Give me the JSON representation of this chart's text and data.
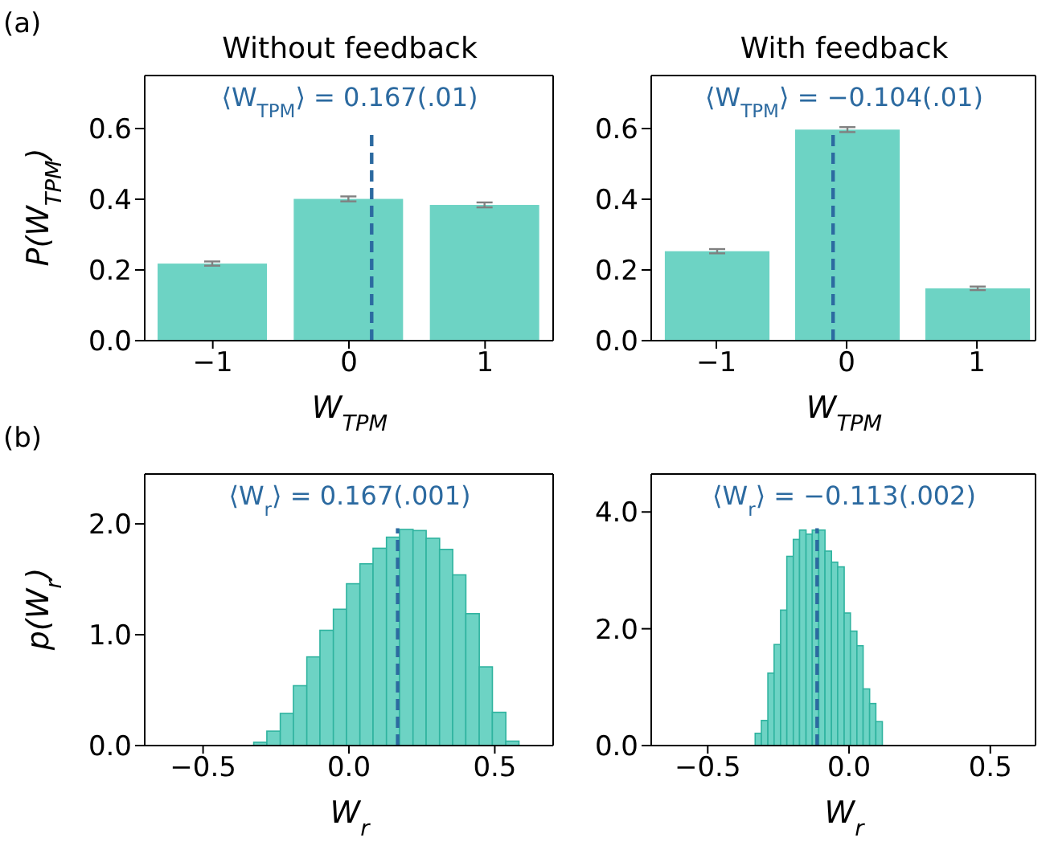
{
  "chart_data": [
    {
      "type": "bar",
      "title": "Without feedback",
      "xlabel": "W$_{TPM}$",
      "ylabel": "P(W$_{TPM}$)",
      "annotations": [
        "(a)"
      ],
      "x": [
        -1,
        0,
        1
      ],
      "values": [
        0.218,
        0.401,
        0.384
      ],
      "errors": [
        0.006,
        0.007,
        0.007
      ],
      "color": "#6dd3c4",
      "xlim": [
        -1.5,
        1.5
      ],
      "xticks": [
        {
          "value": -1,
          "label": "−1"
        },
        0,
        1
      ],
      "ylim": [
        0,
        0.75
      ],
      "yticks": [
        {
          "value": 0,
          "label": "0.0"
        },
        {
          "value": 0.2,
          "label": "0.2"
        },
        {
          "value": 0.4,
          "label": "0.4"
        },
        {
          "value": 0.6,
          "label": "0.6"
        }
      ],
      "ref_lines": [
        {
          "axis": "x",
          "value": 0.167,
          "label": "⟨W$_{TPM}$⟩ = 0.167(.01)",
          "color": "#2c6aa0",
          "line_style": "dashed"
        }
      ],
      "grid": false,
      "legend": false
    },
    {
      "type": "bar",
      "title": "With feedback",
      "xlabel": "W$_{TPM}$",
      "x": [
        -1,
        0,
        1
      ],
      "values": [
        0.253,
        0.597,
        0.148
      ],
      "errors": [
        0.006,
        0.007,
        0.005
      ],
      "color": "#6dd3c4",
      "xlim": [
        -1.5,
        1.45
      ],
      "xticks": [
        {
          "value": -1,
          "label": "−1"
        },
        0,
        1
      ],
      "ylim": [
        0,
        0.75
      ],
      "yticks": [
        {
          "value": 0,
          "label": "0.0"
        },
        {
          "value": 0.2,
          "label": "0.2"
        },
        {
          "value": 0.4,
          "label": "0.4"
        },
        {
          "value": 0.6,
          "label": "0.6"
        }
      ],
      "ref_lines": [
        {
          "axis": "x",
          "value": -0.104,
          "label": "⟨W$_{TPM}$⟩ = −0.104(.01)",
          "color": "#2c6aa0",
          "line_style": "dashed"
        }
      ],
      "grid": false,
      "legend": false
    },
    {
      "type": "histogram",
      "xlabel": "W$_{r}$",
      "ylabel": "p(W$_{r}$)",
      "annotations": [
        "(b)"
      ],
      "bins": [
        -0.324,
        -0.279,
        -0.233,
        -0.188,
        -0.142,
        -0.097,
        -0.051,
        -0.006,
        0.04,
        0.085,
        0.131,
        0.176,
        0.222,
        0.267,
        0.313,
        0.358,
        0.403,
        0.449,
        0.494,
        0.54,
        0.585
      ],
      "values": [
        0.03,
        0.13,
        0.29,
        0.54,
        0.8,
        1.04,
        1.23,
        1.46,
        1.64,
        1.78,
        1.88,
        1.95,
        1.94,
        1.87,
        1.77,
        1.54,
        1.19,
        0.71,
        0.3,
        0.04
      ],
      "color": "#6dd3c4",
      "xlim": [
        -0.7,
        0.7
      ],
      "xticks": [
        {
          "value": -0.5,
          "label": "−0.5"
        },
        {
          "value": 0,
          "label": "0.0"
        },
        0.5
      ],
      "ylim": [
        0,
        2.45
      ],
      "yticks": [
        {
          "value": 0,
          "label": "0.0"
        },
        {
          "value": 1,
          "label": "1.0"
        },
        {
          "value": 2,
          "label": "2.0"
        }
      ],
      "ref_lines": [
        {
          "axis": "x",
          "value": 0.167,
          "label": "⟨W$_{r}$⟩ = 0.167(.001)",
          "color": "#2c6aa0",
          "line_style": "dashed"
        }
      ],
      "grid": false,
      "legend": false
    },
    {
      "type": "histogram",
      "xlabel": "W$_{r}$",
      "bins": [
        -0.331,
        -0.309,
        -0.286,
        -0.264,
        -0.241,
        -0.219,
        -0.196,
        -0.174,
        -0.151,
        -0.129,
        -0.106,
        -0.084,
        -0.061,
        -0.039,
        -0.016,
        0.006,
        0.029,
        0.051,
        0.074,
        0.096,
        0.119
      ],
      "values": [
        0.21,
        0.43,
        1.24,
        1.73,
        2.32,
        3.24,
        3.53,
        3.69,
        3.62,
        3.69,
        3.69,
        3.33,
        3.14,
        3.06,
        2.27,
        1.96,
        1.71,
        0.97,
        0.72,
        0.41
      ],
      "color": "#6dd3c4",
      "xlim": [
        -0.7,
        0.66
      ],
      "xticks": [
        {
          "value": -0.5,
          "label": "−0.5"
        },
        {
          "value": 0,
          "label": "0.0"
        },
        0.5
      ],
      "ylim": [
        0,
        4.65
      ],
      "yticks": [
        {
          "value": 0,
          "label": "0.0"
        },
        {
          "value": 2,
          "label": "2.0"
        },
        {
          "value": 4,
          "label": "4.0"
        }
      ],
      "ref_lines": [
        {
          "axis": "x",
          "value": -0.113,
          "label": "⟨W$_{r}$⟩ = −0.113(.002)",
          "color": "#2c6aa0",
          "line_style": "dashed"
        }
      ],
      "grid": false,
      "legend": false
    }
  ]
}
